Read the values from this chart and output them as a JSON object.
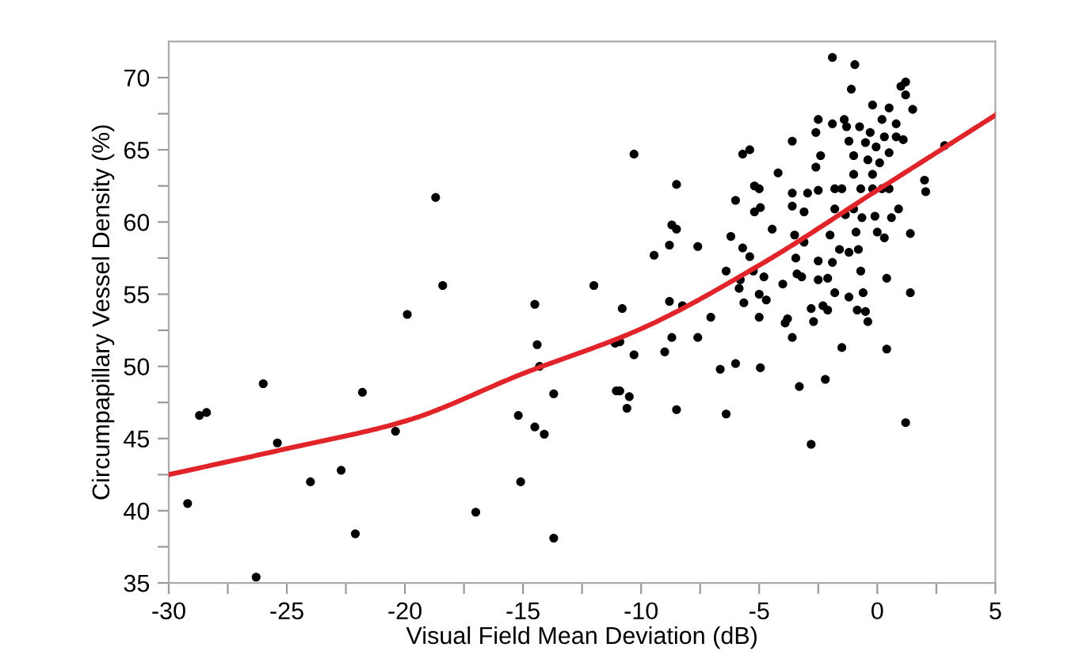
{
  "chart_data": {
    "type": "scatter",
    "xlabel": "Visual Field Mean Deviation (dB)",
    "ylabel": "Circumpapillary Vessel Density (%)",
    "xlim": [
      -30,
      5
    ],
    "ylim": [
      35,
      72.5
    ],
    "xticks": [
      -30,
      {
        "value": -27.5,
        "label": null
      },
      -25,
      {
        "value": -22.5,
        "label": null
      },
      -20,
      {
        "value": -17.5,
        "label": null
      },
      -15,
      {
        "value": -12.5,
        "label": null
      },
      -10,
      {
        "value": -7.5,
        "label": null
      },
      -5,
      {
        "value": -2.5,
        "label": null
      },
      0,
      {
        "value": 2.5,
        "label": null
      },
      5
    ],
    "yticks": [
      35,
      {
        "value": 37.5,
        "label": null
      },
      40,
      {
        "value": 42.5,
        "label": null
      },
      45,
      {
        "value": 47.5,
        "label": null
      },
      50,
      {
        "value": 52.5,
        "label": null
      },
      55,
      {
        "value": 57.5,
        "label": null
      },
      60,
      {
        "value": 62.5,
        "label": null
      },
      65,
      {
        "value": 67.5,
        "label": null
      },
      70
    ],
    "grid": false,
    "marker": "circle",
    "series": [
      {
        "color": "#000000",
        "x": [
          -29.2,
          -28.7,
          -28.4,
          -26.3,
          -26.0,
          -25.4,
          -24.0,
          -22.7,
          -22.1,
          -21.8,
          -20.4,
          -19.9,
          -18.7,
          -18.4,
          -17.0,
          -15.2,
          -15.1,
          -14.5,
          -14.4,
          -14.3,
          -14.5,
          -14.1,
          -13.7,
          -13.7,
          -12.0,
          -11.1,
          -11.05,
          -10.8,
          -10.9,
          -10.3,
          -10.9,
          -10.5,
          -10.6,
          -10.3,
          -9.45,
          -8.8,
          -8.8,
          -8.7,
          -8.5,
          -8.5,
          -9.0,
          -8.7,
          -8.5,
          -8.25,
          -7.6,
          -7.6,
          -7.05,
          -6.65,
          -6.4,
          -6.4,
          -6.2,
          -6.0,
          -6.0,
          -5.8,
          -5.85,
          -5.65,
          -5.7,
          -5.7,
          -5.4,
          -5.4,
          -5.25,
          -5.2,
          -5.0,
          -5.2,
          -4.95,
          -5.0,
          -4.95,
          -5.0,
          -4.8,
          -4.7,
          -4.45,
          -4.2,
          -4.0,
          -3.9,
          -3.8,
          -3.6,
          -3.6,
          -3.6,
          -3.6,
          -3.5,
          -3.45,
          -3.4,
          -3.3,
          -3.2,
          -3.1,
          -3.1,
          -2.95,
          -2.8,
          -2.8,
          -2.7,
          -2.6,
          -2.6,
          -2.5,
          -2.5,
          -2.5,
          -2.5,
          -2.4,
          -2.3,
          -2.2,
          -2.1,
          -2.1,
          -2.0,
          -1.9,
          -1.9,
          -1.9,
          -1.8,
          -1.8,
          -1.8,
          -1.6,
          -1.5,
          -1.5,
          -1.4,
          -1.35,
          -1.3,
          -1.2,
          -1.2,
          -1.2,
          -1.1,
          -1.0,
          -1.0,
          -1.0,
          -0.95,
          -0.9,
          -0.85,
          -0.8,
          -0.75,
          -0.7,
          -0.7,
          -0.65,
          -0.6,
          -0.5,
          -0.5,
          -0.4,
          -0.4,
          -0.3,
          -0.2,
          -0.2,
          -0.2,
          -0.1,
          -0.05,
          0.0,
          0.1,
          0.2,
          0.2,
          0.3,
          0.3,
          0.4,
          0.4,
          0.5,
          0.5,
          0.5,
          0.6,
          0.8,
          0.8,
          0.9,
          1.0,
          1.1,
          1.2,
          1.2,
          1.2,
          1.4,
          1.4,
          1.5,
          2.0,
          2.05,
          2.85
        ],
        "values": [
          40.5,
          46.6,
          46.8,
          35.4,
          48.8,
          44.7,
          42.0,
          42.8,
          38.4,
          48.2,
          45.5,
          53.6,
          61.7,
          55.6,
          39.9,
          46.6,
          42.0,
          54.3,
          51.5,
          50.0,
          45.8,
          45.3,
          48.1,
          38.1,
          55.6,
          51.6,
          48.3,
          54.0,
          51.7,
          50.8,
          48.3,
          47.9,
          47.1,
          64.7,
          57.7,
          58.4,
          54.5,
          59.8,
          59.5,
          62.6,
          51.0,
          52.0,
          47.0,
          54.2,
          58.3,
          52.0,
          53.4,
          49.8,
          46.7,
          56.6,
          59.0,
          50.2,
          61.5,
          56.0,
          55.4,
          54.4,
          58.2,
          64.7,
          65.0,
          57.6,
          56.6,
          62.5,
          62.3,
          60.7,
          61.0,
          53.4,
          49.9,
          55.0,
          56.2,
          54.6,
          59.5,
          63.4,
          55.7,
          53.0,
          53.3,
          52.0,
          65.6,
          62.0,
          61.1,
          59.1,
          57.5,
          56.4,
          48.6,
          56.2,
          58.6,
          60.7,
          62.0,
          44.6,
          54.0,
          53.1,
          66.2,
          63.8,
          62.2,
          57.3,
          56.0,
          67.1,
          64.6,
          54.2,
          49.1,
          53.9,
          56.1,
          59.1,
          71.4,
          66.8,
          57.2,
          60.9,
          55.1,
          62.3,
          58.1,
          51.3,
          62.3,
          67.1,
          60.5,
          66.6,
          54.8,
          57.9,
          65.6,
          69.2,
          64.6,
          60.9,
          63.3,
          70.9,
          59.3,
          53.9,
          58.1,
          66.6,
          62.3,
          56.6,
          60.3,
          55.1,
          53.8,
          65.5,
          64.3,
          53.1,
          66.2,
          68.1,
          63.3,
          62.3,
          60.4,
          65.2,
          59.3,
          64.1,
          67.1,
          62.3,
          65.9,
          58.9,
          56.1,
          51.2,
          67.9,
          62.3,
          64.8,
          60.3,
          66.8,
          65.9,
          60.9,
          69.4,
          65.7,
          46.1,
          69.7,
          68.8,
          59.2,
          55.1,
          67.8,
          62.9,
          62.1,
          65.3
        ]
      },
      {
        "type": "line",
        "color": "#e0242a",
        "marker": "none",
        "x": [
          -30,
          -25,
          -20,
          -15,
          -10,
          -5,
          0,
          5
        ],
        "values": [
          42.5,
          44.3,
          46.2,
          49.5,
          52.6,
          57.0,
          62.2,
          67.4
        ]
      }
    ]
  }
}
